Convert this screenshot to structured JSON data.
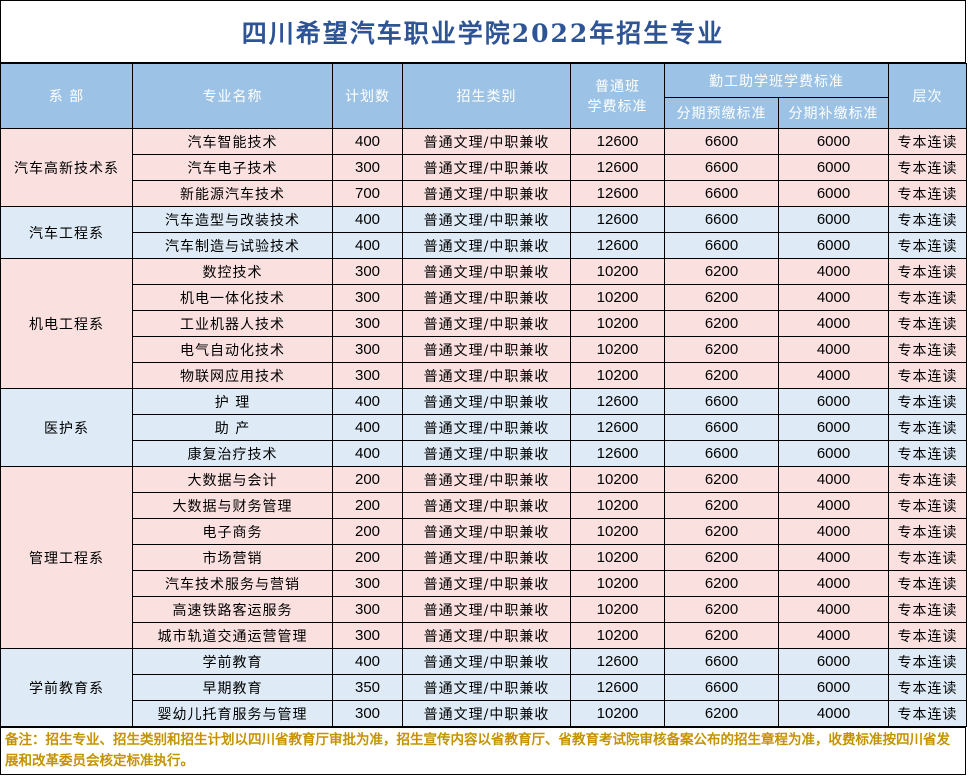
{
  "title": "四川希望汽车职业学院2022年招生专业",
  "headers": {
    "dept": "系 部",
    "major": "专业名称",
    "plan": "计划数",
    "category": "招生类别",
    "regular_fee_line1": "普通班",
    "regular_fee_line2": "学费标准",
    "workstudy": "勤工助学班学费标准",
    "installment": "分期预缴标准",
    "installment_supp": "分期补缴标准",
    "level": "层次"
  },
  "departments": [
    {
      "name": "汽车高新技术系",
      "color": "pink",
      "rows": [
        {
          "major": "汽车智能技术",
          "plan": "400",
          "category": "普通文理/中职兼收",
          "fee": "12600",
          "pre": "6600",
          "supp": "6000",
          "level": "专本连读"
        },
        {
          "major": "汽车电子技术",
          "plan": "300",
          "category": "普通文理/中职兼收",
          "fee": "12600",
          "pre": "6600",
          "supp": "6000",
          "level": "专本连读"
        },
        {
          "major": "新能源汽车技术",
          "plan": "700",
          "category": "普通文理/中职兼收",
          "fee": "12600",
          "pre": "6600",
          "supp": "6000",
          "level": "专本连读"
        }
      ]
    },
    {
      "name": "汽车工程系",
      "color": "blue",
      "rows": [
        {
          "major": "汽车造型与改装技术",
          "plan": "400",
          "category": "普通文理/中职兼收",
          "fee": "12600",
          "pre": "6600",
          "supp": "6000",
          "level": "专本连读"
        },
        {
          "major": "汽车制造与试验技术",
          "plan": "400",
          "category": "普通文理/中职兼收",
          "fee": "12600",
          "pre": "6600",
          "supp": "6000",
          "level": "专本连读"
        }
      ]
    },
    {
      "name": "机电工程系",
      "color": "pink",
      "rows": [
        {
          "major": "数控技术",
          "plan": "300",
          "category": "普通文理/中职兼收",
          "fee": "10200",
          "pre": "6200",
          "supp": "4000",
          "level": "专本连读"
        },
        {
          "major": "机电一体化技术",
          "plan": "300",
          "category": "普通文理/中职兼收",
          "fee": "10200",
          "pre": "6200",
          "supp": "4000",
          "level": "专本连读"
        },
        {
          "major": "工业机器人技术",
          "plan": "300",
          "category": "普通文理/中职兼收",
          "fee": "10200",
          "pre": "6200",
          "supp": "4000",
          "level": "专本连读"
        },
        {
          "major": "电气自动化技术",
          "plan": "300",
          "category": "普通文理/中职兼收",
          "fee": "10200",
          "pre": "6200",
          "supp": "4000",
          "level": "专本连读"
        },
        {
          "major": "物联网应用技术",
          "plan": "300",
          "category": "普通文理/中职兼收",
          "fee": "10200",
          "pre": "6200",
          "supp": "4000",
          "level": "专本连读"
        }
      ]
    },
    {
      "name": "医护系",
      "color": "blue",
      "rows": [
        {
          "major": "护 理",
          "plan": "400",
          "category": "普通文理/中职兼收",
          "fee": "12600",
          "pre": "6600",
          "supp": "6000",
          "level": "专本连读"
        },
        {
          "major": "助 产",
          "plan": "400",
          "category": "普通文理/中职兼收",
          "fee": "12600",
          "pre": "6600",
          "supp": "6000",
          "level": "专本连读"
        },
        {
          "major": "康复治疗技术",
          "plan": "400",
          "category": "普通文理/中职兼收",
          "fee": "12600",
          "pre": "6600",
          "supp": "6000",
          "level": "专本连读"
        }
      ]
    },
    {
      "name": "管理工程系",
      "color": "pink",
      "rows": [
        {
          "major": "大数据与会计",
          "plan": "200",
          "category": "普通文理/中职兼收",
          "fee": "10200",
          "pre": "6200",
          "supp": "4000",
          "level": "专本连读"
        },
        {
          "major": "大数据与财务管理",
          "plan": "200",
          "category": "普通文理/中职兼收",
          "fee": "10200",
          "pre": "6200",
          "supp": "4000",
          "level": "专本连读"
        },
        {
          "major": "电子商务",
          "plan": "200",
          "category": "普通文理/中职兼收",
          "fee": "10200",
          "pre": "6200",
          "supp": "4000",
          "level": "专本连读"
        },
        {
          "major": "市场营销",
          "plan": "200",
          "category": "普通文理/中职兼收",
          "fee": "10200",
          "pre": "6200",
          "supp": "4000",
          "level": "专本连读"
        },
        {
          "major": "汽车技术服务与营销",
          "plan": "300",
          "category": "普通文理/中职兼收",
          "fee": "10200",
          "pre": "6200",
          "supp": "4000",
          "level": "专本连读"
        },
        {
          "major": "高速铁路客运服务",
          "plan": "300",
          "category": "普通文理/中职兼收",
          "fee": "10200",
          "pre": "6200",
          "supp": "4000",
          "level": "专本连读"
        },
        {
          "major": "城市轨道交通运营管理",
          "plan": "300",
          "category": "普通文理/中职兼收",
          "fee": "10200",
          "pre": "6200",
          "supp": "4000",
          "level": "专本连读"
        }
      ]
    },
    {
      "name": "学前教育系",
      "color": "blue",
      "rows": [
        {
          "major": "学前教育",
          "plan": "400",
          "category": "普通文理/中职兼收",
          "fee": "12600",
          "pre": "6600",
          "supp": "6000",
          "level": "专本连读"
        },
        {
          "major": "早期教育",
          "plan": "350",
          "category": "普通文理/中职兼收",
          "fee": "12600",
          "pre": "6600",
          "supp": "6000",
          "level": "专本连读"
        },
        {
          "major": "婴幼儿托育服务与管理",
          "plan": "300",
          "category": "普通文理/中职兼收",
          "fee": "10200",
          "pre": "6200",
          "supp": "4000",
          "level": "专本连读"
        }
      ]
    }
  ],
  "note": "备注：招生专业、招生类别和招生计划以四川省教育厅审批为准，招生宣传内容以省教育厅、省教育考试院审核备案公布的招生章程为准，收费标准按四川省发展和改革委员会核定标准执行。"
}
